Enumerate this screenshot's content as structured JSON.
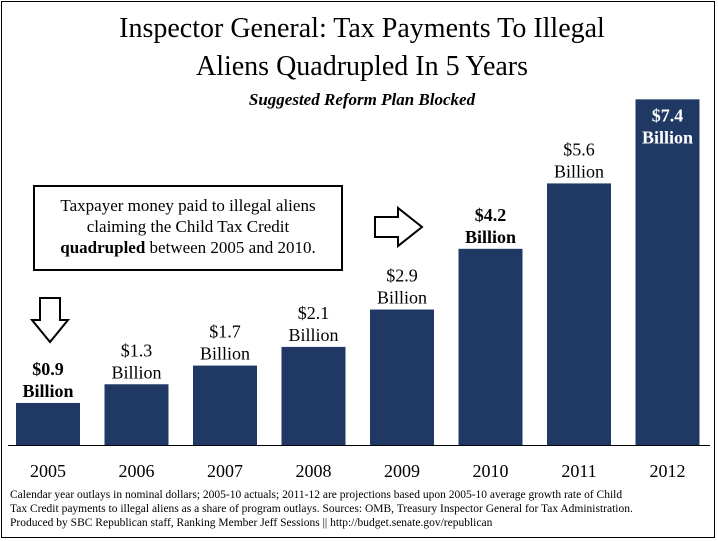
{
  "chart_data": {
    "type": "bar",
    "title": "Inspector General: Tax Payments To Illegal Aliens Quadrupled In 5 Years",
    "title_lines": [
      "Inspector General: Tax Payments To Illegal",
      "Aliens Quadrupled In 5 Years"
    ],
    "subtitle": "Suggested Reform Plan Blocked",
    "categories": [
      "2005",
      "2006",
      "2007",
      "2008",
      "2009",
      "2010",
      "2011",
      "2012"
    ],
    "values": [
      0.9,
      1.3,
      1.7,
      2.1,
      2.9,
      4.2,
      5.6,
      7.4
    ],
    "unit": "Billion",
    "data_labels": [
      {
        "value": "$0.9",
        "unit": "Billion",
        "bold": true
      },
      {
        "value": "$1.3",
        "unit": "Billion",
        "bold": false
      },
      {
        "value": "$1.7",
        "unit": "Billion",
        "bold": false
      },
      {
        "value": "$2.1",
        "unit": "Billion",
        "bold": false
      },
      {
        "value": "$2.9",
        "unit": "Billion",
        "bold": false
      },
      {
        "value": "$4.2",
        "unit": "Billion",
        "bold": true
      },
      {
        "value": "$5.6",
        "unit": "Billion",
        "bold": false
      },
      {
        "value": "$7.4",
        "unit": "Billion",
        "bold": true
      }
    ],
    "bar_color": "#1F3864",
    "ylim": [
      0,
      7.6
    ],
    "xlabel": "",
    "ylabel": "",
    "grid": false,
    "legend": "none"
  },
  "callout": {
    "line1": "Taxpayer money paid to illegal aliens",
    "line2": "claiming the Child Tax Credit",
    "line3_bold": "quadrupled",
    "line3_rest": " between 2005 and 2010."
  },
  "footnote": {
    "line1": "Calendar year outlays in nominal dollars; 2005-10 actuals; 2011-12 are projections based upon 2005-10 average growth rate of Child",
    "line2": "Tax Credit payments to illegal aliens as a share of program outlays. Sources: OMB, Treasury Inspector General for Tax Administration.",
    "line3": "Produced by SBC Republican staff, Ranking Member Jeff Sessions || http://budget.senate.gov/republican"
  }
}
